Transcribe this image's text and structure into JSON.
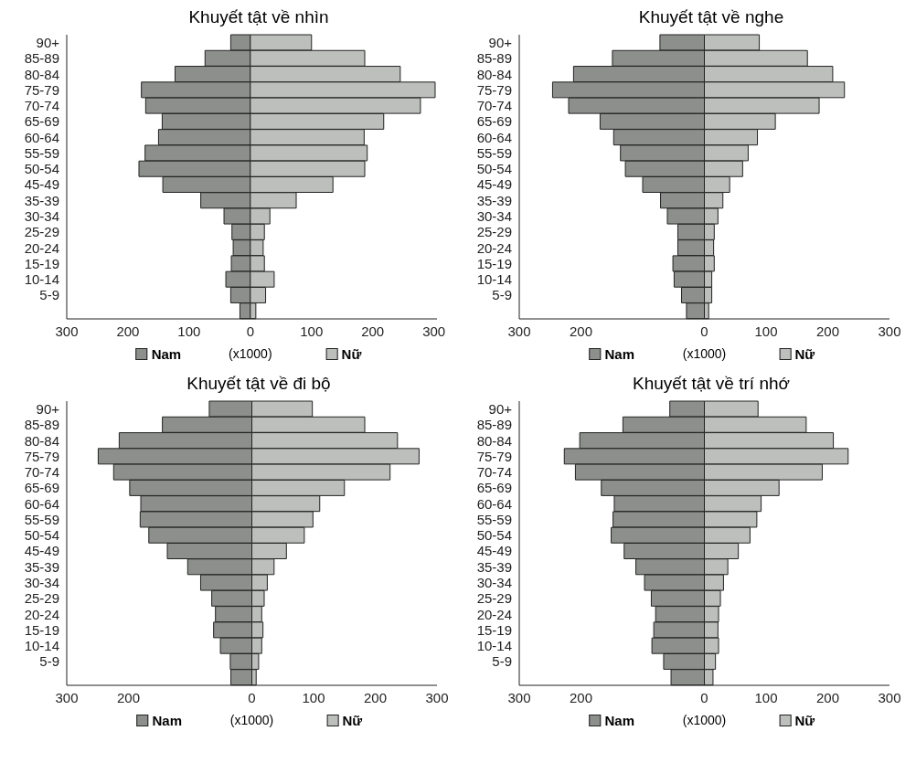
{
  "chart_data": [
    {
      "type": "bar",
      "title": "Khuyết tật về nhìn",
      "xlabel": "(x1000)",
      "legend": "bottom",
      "orientation": "horizontal",
      "stacked": true,
      "categories": [
        "90+",
        "85-89",
        "80-84",
        "75-79",
        "70-74",
        "65-69",
        "60-64",
        "55-59",
        "50-54",
        "45-49",
        "35-39",
        "30-34",
        "25-29",
        "20-24",
        "15-19",
        "10-14",
        "5-9",
        null
      ],
      "series": [
        {
          "name": "Nam",
          "color": "#8c8f8c",
          "values": [
            -32,
            -74,
            -123,
            -178,
            -171,
            -144,
            -150,
            -172,
            -182,
            -143,
            -81,
            -43,
            -30,
            -28,
            -31,
            -40,
            -32,
            -17
          ]
        },
        {
          "name": "Nữ",
          "color": "#bcbfbc",
          "values": [
            100,
            187,
            245,
            302,
            278,
            218,
            186,
            191,
            187,
            135,
            75,
            32,
            23,
            21,
            23,
            39,
            25,
            9
          ]
        }
      ],
      "xlim": [
        -300,
        305
      ],
      "xticks": [
        {
          "value": -300,
          "label": "300"
        },
        {
          "value": -200,
          "label": "200"
        },
        {
          "value": -100,
          "label": "100"
        },
        0,
        100,
        200,
        300
      ]
    },
    {
      "type": "bar",
      "title": "Khuyết tật về nghe",
      "xlabel": "(x1000)",
      "legend": "bottom",
      "orientation": "horizontal",
      "stacked": true,
      "categories": [
        "90+",
        "85-89",
        "80-84",
        "75-79",
        "70-74",
        "65-69",
        "60-64",
        "55-59",
        "50-54",
        "45-49",
        "35-39",
        "30-34",
        "25-29",
        "20-24",
        "15-19",
        "10-14",
        "5-9",
        null
      ],
      "series": [
        {
          "name": "Nam",
          "color": "#8c8f8c",
          "values": [
            -72,
            -149,
            -212,
            -246,
            -220,
            -169,
            -147,
            -136,
            -128,
            -100,
            -71,
            -60,
            -43,
            -43,
            -51,
            -49,
            -37,
            -29
          ]
        },
        {
          "name": "Nữ",
          "color": "#bcbfbc",
          "values": [
            89,
            167,
            208,
            227,
            186,
            115,
            86,
            71,
            62,
            41,
            30,
            22,
            16,
            15,
            16,
            12,
            12,
            7
          ]
        }
      ],
      "xlim": [
        -300,
        300
      ],
      "xticks": [
        {
          "value": -300,
          "label": "300"
        },
        {
          "value": -200,
          "label": "200"
        },
        0,
        100,
        200,
        300
      ]
    },
    {
      "type": "bar",
      "title": "Khuyết tật về đi bộ",
      "xlabel": "(x1000)",
      "legend": "bottom",
      "orientation": "horizontal",
      "stacked": true,
      "categories": [
        "90+",
        "85-89",
        "80-84",
        "75-79",
        "70-74",
        "65-69",
        "60-64",
        "55-59",
        "50-54",
        "45-49",
        "35-39",
        "30-34",
        "25-29",
        "20-24",
        "15-19",
        "10-14",
        "5-9",
        null
      ],
      "series": [
        {
          "name": "Nam",
          "color": "#8c8f8c",
          "values": [
            -69,
            -145,
            -215,
            -249,
            -224,
            -198,
            -180,
            -181,
            -167,
            -137,
            -104,
            -83,
            -65,
            -59,
            -62,
            -51,
            -35,
            -34
          ]
        },
        {
          "name": "Nữ",
          "color": "#bcbfbc",
          "values": [
            98,
            183,
            236,
            271,
            224,
            150,
            110,
            99,
            85,
            56,
            36,
            25,
            20,
            16,
            18,
            16,
            11,
            7
          ]
        }
      ],
      "xlim": [
        -300,
        300
      ],
      "xticks": [
        {
          "value": -300,
          "label": "300"
        },
        {
          "value": -200,
          "label": "200"
        },
        0,
        100,
        200,
        300
      ]
    },
    {
      "type": "bar",
      "title": "Khuyết tật về trí nhớ",
      "xlabel": "(x1000)",
      "legend": "bottom",
      "orientation": "horizontal",
      "stacked": true,
      "categories": [
        "90+",
        "85-89",
        "80-84",
        "75-79",
        "70-74",
        "65-69",
        "60-64",
        "55-59",
        "50-54",
        "45-49",
        "35-39",
        "30-34",
        "25-29",
        "20-24",
        "15-19",
        "10-14",
        "5-9",
        null
      ],
      "series": [
        {
          "name": "Nam",
          "color": "#8c8f8c",
          "values": [
            -56,
            -132,
            -202,
            -227,
            -209,
            -167,
            -146,
            -148,
            -151,
            -130,
            -111,
            -97,
            -86,
            -79,
            -82,
            -85,
            -66,
            -54
          ]
        },
        {
          "name": "Nữ",
          "color": "#bcbfbc",
          "values": [
            87,
            165,
            209,
            233,
            191,
            121,
            92,
            85,
            74,
            55,
            38,
            31,
            26,
            23,
            22,
            23,
            18,
            14
          ]
        }
      ],
      "xlim": [
        -300,
        300
      ],
      "xticks": [
        {
          "value": -300,
          "label": "300"
        },
        {
          "value": -200,
          "label": "200"
        },
        0,
        100,
        200,
        300
      ]
    }
  ]
}
